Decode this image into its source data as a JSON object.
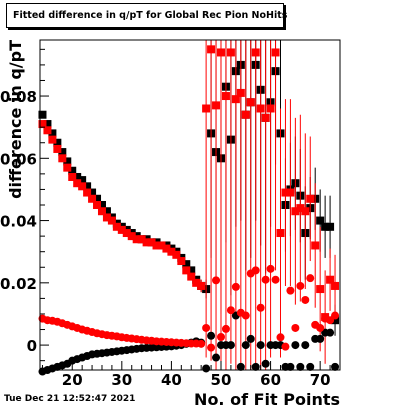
{
  "chart_data": {
    "type": "scatter",
    "title": "Fitted difference in q/pT for Global Rec Pion NoHits",
    "xlabel": "No. of Fit Points",
    "ylabel": "difference in q/pT",
    "xlim": [
      13.5,
      74
    ],
    "ylim": [
      -0.008,
      0.098
    ],
    "xticks": [
      {
        "value": 20,
        "label": "20"
      },
      {
        "value": 30,
        "label": "30"
      },
      {
        "value": 40,
        "label": "40"
      },
      {
        "value": 50,
        "label": "50"
      },
      {
        "value": 60,
        "label": "60"
      },
      {
        "value": 70,
        "label": "70"
      }
    ],
    "yticks": [
      {
        "value": 0,
        "label": "0"
      },
      {
        "value": 0.02,
        "label": "0.02"
      },
      {
        "value": 0.04,
        "label": "0.04"
      },
      {
        "value": 0.06,
        "label": "0.06"
      },
      {
        "value": 0.08,
        "label": "0.08"
      }
    ],
    "grid": false,
    "legend": "none",
    "series": [
      {
        "marker": "square",
        "color": "#000000",
        "x": [
          14,
          15,
          16,
          17,
          18,
          19,
          20,
          21,
          22,
          23,
          24,
          25,
          26,
          27,
          28,
          29,
          30,
          31,
          32,
          33,
          34,
          35,
          36,
          37,
          38,
          39,
          40,
          41,
          42,
          43,
          44,
          45,
          46,
          47,
          48,
          49,
          50,
          51,
          52,
          53,
          54,
          55,
          56,
          57,
          58,
          59,
          60,
          61,
          62,
          63,
          64,
          65,
          66,
          67,
          68,
          69,
          70,
          71,
          72,
          73
        ],
        "y": [
          0.074,
          0.071,
          0.068,
          0.065,
          0.062,
          0.059,
          0.056,
          0.054,
          0.053,
          0.051,
          0.049,
          0.047,
          0.045,
          0.043,
          0.041,
          0.039,
          0.038,
          0.037,
          0.036,
          0.035,
          0.034,
          0.034,
          0.033,
          0.033,
          0.032,
          0.032,
          0.031,
          0.03,
          0.028,
          0.026,
          0.024,
          0.021,
          0.019,
          0.018,
          0.068,
          0.062,
          0.06,
          0.083,
          0.066,
          0.088,
          0.09,
          0.074,
          0.078,
          0.09,
          0.082,
          0.073,
          0.078,
          0.088,
          0.068,
          0.045,
          0.05,
          0.052,
          0.048,
          0.036,
          0.044,
          0.047,
          0.04,
          0.038,
          0.038,
          0.008
        ],
        "yerr": [
          0.001,
          0.001,
          0.001,
          0.001,
          0.001,
          0.001,
          0.001,
          0.001,
          0.001,
          0.001,
          0.001,
          0.001,
          0.001,
          0.001,
          0.001,
          0.001,
          0.001,
          0.001,
          0.001,
          0.001,
          0.001,
          0.001,
          0.001,
          0.001,
          0.001,
          0.001,
          0.001,
          0.001,
          0.001,
          0.001,
          0.001,
          0.001,
          0.002,
          0.003,
          0.04,
          0.04,
          0.05,
          0.05,
          0.05,
          0.05,
          0.05,
          0.05,
          0.05,
          0.05,
          0.05,
          0.05,
          0.04,
          0.03,
          0.03,
          0.015,
          0.015,
          0.015,
          0.015,
          0.015,
          0.01,
          0.01,
          0.01,
          0.01,
          0.01,
          0.005
        ]
      },
      {
        "marker": "square",
        "color": "#ff0000",
        "x": [
          14,
          15,
          16,
          17,
          18,
          19,
          20,
          21,
          22,
          23,
          24,
          25,
          26,
          27,
          28,
          29,
          30,
          31,
          32,
          33,
          34,
          35,
          36,
          37,
          38,
          39,
          40,
          41,
          42,
          43,
          44,
          45,
          46,
          47,
          48,
          49,
          50,
          51,
          52,
          53,
          54,
          55,
          56,
          57,
          58,
          59,
          60,
          61,
          62,
          63,
          64,
          65,
          66,
          67,
          68,
          69,
          70,
          71,
          72,
          73
        ],
        "y": [
          0.071,
          0.069,
          0.066,
          0.063,
          0.06,
          0.057,
          0.054,
          0.052,
          0.051,
          0.049,
          0.047,
          0.045,
          0.043,
          0.041,
          0.04,
          0.038,
          0.037,
          0.036,
          0.035,
          0.034,
          0.034,
          0.033,
          0.033,
          0.032,
          0.032,
          0.031,
          0.03,
          0.029,
          0.027,
          0.024,
          0.022,
          0.02,
          0.019,
          0.076,
          0.095,
          0.077,
          0.094,
          0.08,
          0.094,
          0.079,
          0.081,
          0.074,
          0.078,
          0.094,
          0.076,
          0.073,
          0.076,
          0.094,
          0.036,
          0.049,
          0.049,
          0.043,
          0.044,
          0.043,
          0.047,
          0.032,
          0.018,
          0.009,
          0.021,
          0.019
        ],
        "yerr": [
          0.001,
          0.001,
          0.001,
          0.001,
          0.001,
          0.001,
          0.001,
          0.001,
          0.001,
          0.001,
          0.001,
          0.001,
          0.001,
          0.001,
          0.001,
          0.001,
          0.001,
          0.001,
          0.001,
          0.001,
          0.001,
          0.001,
          0.001,
          0.001,
          0.001,
          0.001,
          0.001,
          0.001,
          0.001,
          0.001,
          0.001,
          0.001,
          0.002,
          0.08,
          0.1,
          0.1,
          0.1,
          0.1,
          0.1,
          0.1,
          0.1,
          0.1,
          0.1,
          0.1,
          0.1,
          0.1,
          0.08,
          0.07,
          0.04,
          0.03,
          0.03,
          0.03,
          0.03,
          0.025,
          0.02,
          0.02,
          0.02,
          0.015,
          0.01,
          0.01
        ]
      },
      {
        "marker": "circle",
        "color": "#000000",
        "x": [
          14,
          15,
          16,
          17,
          18,
          19,
          20,
          21,
          22,
          23,
          24,
          25,
          26,
          27,
          28,
          29,
          30,
          31,
          32,
          33,
          34,
          35,
          36,
          37,
          38,
          39,
          40,
          41,
          42,
          43,
          44,
          45,
          46,
          47,
          48,
          49,
          50,
          51,
          52,
          53,
          54,
          55,
          56,
          57,
          58,
          59,
          60,
          61,
          62,
          63,
          64,
          65,
          66,
          67,
          68,
          69,
          70,
          71,
          72,
          73
        ],
        "y": [
          -0.0085,
          -0.008,
          -0.0075,
          -0.007,
          -0.0065,
          -0.006,
          -0.005,
          -0.0045,
          -0.004,
          -0.0035,
          -0.003,
          -0.0028,
          -0.0026,
          -0.0024,
          -0.0022,
          -0.002,
          -0.0018,
          -0.0016,
          -0.0014,
          -0.0012,
          -0.001,
          -0.0009,
          -0.0008,
          -0.0007,
          -0.0006,
          -0.0005,
          -0.0004,
          -0.0002,
          0.0,
          0.0004,
          0.0008,
          0.0012,
          0.0008,
          -0.0075,
          0.003,
          -0.004,
          0.0,
          0.0,
          0.0,
          0.0095,
          -0.007,
          0.0,
          0.002,
          -0.007,
          0.0,
          -0.006,
          0.0,
          0.0,
          0.0,
          -0.007,
          -0.007,
          0.0,
          -0.007,
          0.0,
          -0.007,
          0.002,
          0.002,
          0.004,
          0.004,
          -0.007
        ]
      },
      {
        "marker": "circle",
        "color": "#ff0000",
        "x": [
          14,
          15,
          16,
          17,
          18,
          19,
          20,
          21,
          22,
          23,
          24,
          25,
          26,
          27,
          28,
          29,
          30,
          31,
          32,
          33,
          34,
          35,
          36,
          37,
          38,
          39,
          40,
          41,
          42,
          43,
          44,
          45,
          46,
          47,
          48,
          49,
          50,
          51,
          52,
          53,
          54,
          55,
          56,
          57,
          58,
          59,
          60,
          61,
          62,
          63,
          64,
          65,
          66,
          67,
          68,
          69,
          70,
          71,
          72,
          73
        ],
        "y": [
          0.0085,
          0.008,
          0.0078,
          0.0075,
          0.007,
          0.0065,
          0.006,
          0.0055,
          0.005,
          0.0046,
          0.0042,
          0.0038,
          0.0035,
          0.0032,
          0.003,
          0.0028,
          0.0025,
          0.0023,
          0.0021,
          0.0019,
          0.0017,
          0.0015,
          0.0014,
          0.0012,
          0.0011,
          0.001,
          0.0009,
          0.0008,
          0.0007,
          0.0006,
          0.0005,
          0.0005,
          0.0004,
          0.0055,
          -0.0008,
          0.0208,
          0.0026,
          0.0052,
          0.0112,
          0.0187,
          0.0104,
          0.0095,
          0.023,
          0.024,
          0.012,
          0.021,
          0.0245,
          0.021,
          0.0025,
          -0.0005,
          0.0175,
          0.0055,
          0.019,
          0.0145,
          0.0215,
          0.0065,
          0.0055,
          0.0085,
          0.008,
          0.0095
        ]
      }
    ]
  },
  "timestamp": "Tue Dec 21 12:52:47 2021"
}
